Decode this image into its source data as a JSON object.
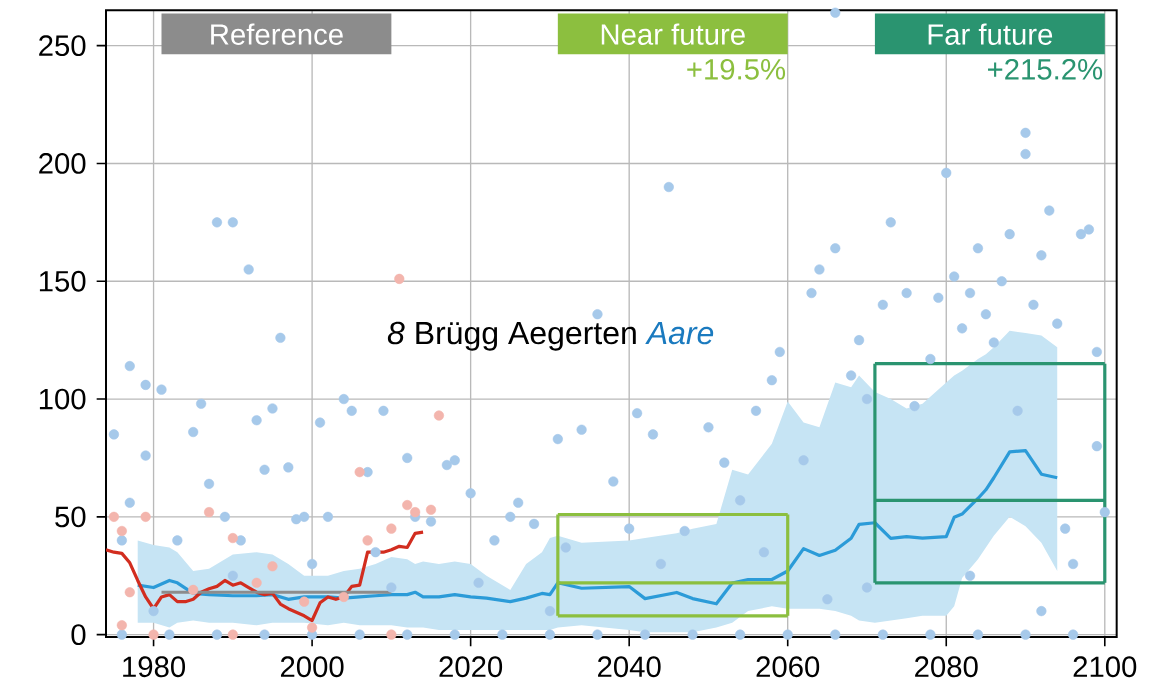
{
  "chart_data": {
    "type": "line",
    "title": "*8* Brügg Aegerten",
    "subtitle": "*Aare*",
    "annotations": [
      "+19.5%",
      "+215.2%"
    ],
    "xlim": [
      1974,
      2101.5
    ],
    "ylim": [
      -1,
      265
    ],
    "xticks": [
      1980,
      2000,
      2020,
      2040,
      2060,
      2080,
      2100
    ],
    "yticks": [
      0,
      50,
      100,
      150,
      200,
      250
    ],
    "grid": true,
    "series": [
      {
        "type": "scatter",
        "color": "#a6c9ea",
        "x": [
          1975,
          1976,
          1977,
          1977,
          1979,
          1979,
          1981,
          1983,
          1985,
          1986,
          1987,
          1988,
          1990,
          1989,
          1991,
          1992,
          1993,
          1994,
          1995,
          1996,
          1997,
          1998,
          1999,
          2001,
          2002,
          2004,
          2005,
          2007,
          2008,
          2009,
          2012,
          2013,
          2015,
          2017,
          2018,
          2020,
          2021,
          2023,
          2025,
          2026,
          2028,
          2031,
          2032,
          2034,
          2036,
          2038,
          2040,
          2041,
          2043,
          2045,
          2047,
          2050,
          2052,
          2054,
          2056,
          2058,
          2059,
          2062,
          2063,
          2064,
          2066,
          2066,
          2068,
          2069,
          2070,
          2072,
          2073,
          2075,
          2076,
          2078,
          2079,
          2080,
          2081,
          2082,
          2083,
          2084,
          2085,
          2086,
          2087,
          2088,
          2089,
          2090,
          2090,
          2091,
          2092,
          2093,
          2094,
          2095,
          2096,
          2097,
          2098,
          2099,
          2099,
          2100,
          1980,
          1990,
          2000,
          2010,
          2030,
          2044,
          2057,
          2065,
          2070,
          2083,
          2092,
          1976,
          1982,
          1988,
          1994,
          2000,
          2006,
          2012,
          2018,
          2024,
          2030,
          2036,
          2042,
          2048,
          2054,
          2060,
          2066,
          2072,
          2078,
          2084,
          2090,
          2096
        ],
        "values": [
          85,
          40,
          56,
          114,
          106,
          76,
          104,
          40,
          86,
          98,
          64,
          175,
          175,
          50,
          40,
          155,
          91,
          70,
          96,
          126,
          71,
          49,
          50,
          90,
          50,
          100,
          95,
          69,
          35,
          95,
          75,
          50,
          48,
          72,
          74,
          60,
          22,
          40,
          50,
          56,
          47,
          83,
          37,
          87,
          136,
          65,
          45,
          94,
          85,
          190,
          44,
          88,
          73,
          57,
          95,
          108,
          120,
          74,
          145,
          155,
          164,
          264,
          110,
          125,
          100,
          140,
          175,
          145,
          97,
          117,
          143,
          196,
          152,
          130,
          145,
          164,
          136,
          124,
          150,
          170,
          95,
          213,
          204,
          140,
          161,
          180,
          132,
          45,
          30,
          170,
          172,
          120,
          80,
          52,
          10,
          25,
          30,
          20,
          10,
          30,
          35,
          15,
          20,
          25,
          10,
          0,
          0,
          0,
          0,
          0,
          0,
          0,
          0,
          0,
          0,
          0,
          0,
          0,
          0,
          0,
          0,
          0,
          0,
          0,
          0,
          0
        ]
      },
      {
        "type": "scatter",
        "color": "#f3b5ad",
        "x": [
          1975,
          1977,
          1976,
          1979,
          1985,
          1987,
          1990,
          1993,
          1995,
          1999,
          2004,
          2006,
          2007,
          2010,
          2011,
          2012,
          2013,
          2015,
          2016,
          1976,
          1980,
          1990,
          2000,
          2010
        ],
        "values": [
          50,
          18,
          44,
          50,
          19,
          52,
          41,
          22,
          29,
          14,
          16,
          69,
          40,
          45,
          151,
          55,
          52,
          53,
          93,
          4,
          0,
          0,
          3,
          0
        ]
      },
      {
        "color": "#2b9bd8",
        "x": [
          1978,
          1980,
          1982,
          1983,
          1985,
          1987,
          1990,
          1993,
          1995,
          1997,
          1999,
          2002,
          2004,
          2006,
          2008,
          2010,
          2012,
          2013,
          2014,
          2016,
          2018,
          2020,
          2022,
          2025,
          2027,
          2029,
          2030,
          2031,
          2034,
          2040,
          2042,
          2046,
          2048,
          2051,
          2053,
          2055,
          2058,
          2060,
          2062,
          2064,
          2066,
          2068,
          2069,
          2071,
          2073,
          2075,
          2077,
          2080,
          2081,
          2082,
          2084,
          2085,
          2086,
          2088,
          2090,
          2092,
          2094
        ],
        "values": [
          21,
          20,
          23,
          22,
          17.5,
          17,
          16.5,
          16.5,
          17,
          15,
          16,
          16,
          15.5,
          16,
          16.5,
          17,
          17,
          18,
          16,
          16,
          17,
          16,
          15.5,
          14,
          15.5,
          17.5,
          17,
          22,
          19.7,
          20.4,
          15.3,
          17.9,
          15.3,
          13.1,
          21.9,
          23.4,
          23.4,
          27,
          36.5,
          33.6,
          35.8,
          40.9,
          46.8,
          47.5,
          40.9,
          41.6,
          41,
          41.6,
          49.8,
          51.2,
          57.8,
          61.5,
          66.6,
          77.6,
          78.1,
          68.1,
          66.6
        ],
        "lower": [
          5,
          5,
          3,
          5,
          6,
          5,
          5,
          4,
          5,
          5,
          5,
          4,
          5,
          4,
          4,
          4,
          3,
          3,
          3,
          2,
          2,
          2,
          2,
          2,
          2,
          2,
          2,
          3,
          4,
          2,
          1,
          1,
          1,
          3,
          5,
          10,
          12,
          11,
          11,
          11,
          10,
          8,
          6,
          5,
          6,
          7,
          8,
          8,
          12,
          24,
          32,
          37,
          42,
          50,
          46,
          39,
          27
        ],
        "upper": [
          40,
          38,
          37,
          35,
          27,
          28,
          34,
          35,
          34,
          30,
          25,
          25,
          27,
          28,
          30,
          33,
          32,
          30,
          31,
          30,
          31,
          30,
          25,
          19,
          30,
          35,
          41,
          42,
          39,
          40,
          41,
          43,
          45,
          47,
          70,
          68,
          81,
          99,
          90,
          88,
          107,
          105,
          110,
          103,
          100,
          96,
          98,
          107,
          110,
          112,
          117,
          119,
          122,
          129,
          128,
          127,
          122
        ]
      },
      {
        "color": "#d22d1f",
        "x": [
          1974,
          1975,
          1976,
          1977,
          1978,
          1979,
          1980,
          1981,
          1982,
          1983,
          1984,
          1985,
          1986,
          1987,
          1988,
          1989,
          1990,
          1991,
          1992,
          1993,
          1994,
          1995,
          1996,
          1997,
          1998,
          1999,
          2000,
          2001,
          2002,
          2003,
          2004,
          2005,
          2006,
          2007,
          2008,
          2009,
          2010,
          2011,
          2012,
          2013,
          2014
        ],
        "values": [
          36,
          35,
          34.5,
          30.5,
          23,
          16,
          11,
          16,
          17,
          14,
          14,
          15,
          18,
          19.5,
          20.5,
          23,
          21,
          22,
          20,
          18,
          17,
          17.5,
          13,
          11,
          9.5,
          8,
          6,
          13.5,
          16,
          15,
          16,
          20.5,
          21,
          35,
          35,
          35,
          36,
          37.5,
          37,
          43,
          43.5
        ]
      },
      {
        "name": "Reference",
        "color": "#8c8c8c",
        "x": [
          1981,
          2010
        ],
        "values": [
          18,
          18
        ]
      },
      {
        "name": "Near future",
        "color": "#8cbf3f",
        "x": [
          2031,
          2060
        ],
        "values": [
          51,
          51
        ]
      },
      {
        "color": "#8cbf3f",
        "x": [
          2031,
          2060
        ],
        "values": [
          22,
          22
        ]
      },
      {
        "color": "#8cbf3f",
        "x": [
          2031,
          2060
        ],
        "values": [
          8,
          8
        ]
      },
      {
        "color": "#8cbf3f",
        "x": [
          2031,
          2031
        ],
        "values": [
          8,
          51
        ]
      },
      {
        "color": "#8cbf3f",
        "x": [
          2060,
          2060
        ],
        "values": [
          8,
          51
        ]
      },
      {
        "name": "Far future",
        "color": "#2a9470",
        "x": [
          2071,
          2100
        ],
        "values": [
          115,
          115
        ]
      },
      {
        "color": "#2a9470",
        "x": [
          2071,
          2100
        ],
        "values": [
          57,
          57
        ]
      },
      {
        "color": "#2a9470",
        "x": [
          2071,
          2100
        ],
        "values": [
          22,
          22
        ]
      },
      {
        "color": "#2a9470",
        "x": [
          2071,
          2071
        ],
        "values": [
          22,
          115
        ]
      },
      {
        "color": "#2a9470",
        "x": [
          2100,
          2100
        ],
        "values": [
          22,
          115
        ]
      }
    ]
  }
}
